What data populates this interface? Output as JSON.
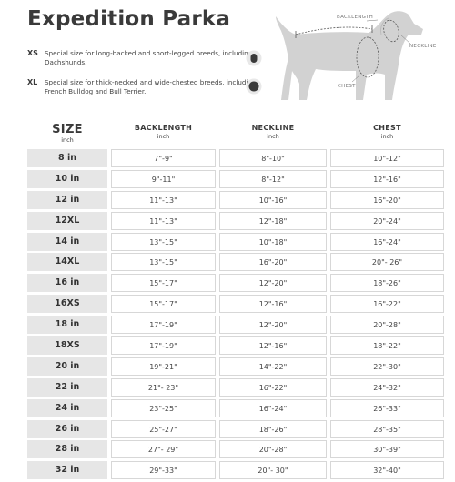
{
  "title": "Expedition Parka",
  "notes": [
    {
      "code": "XS",
      "text": "Special size for long-backed and short-legged breeds, including Dachshunds."
    },
    {
      "code": "XL",
      "text": "Special size for thick-necked and wide-chested breeds, including French Bulldog and Bull Terrier."
    }
  ],
  "diagram_labels": {
    "backlength": "BACKLENGTH",
    "neckline": "NECKLINE",
    "chest": "CHEST"
  },
  "columns": [
    {
      "title": "SIZE",
      "unit": "inch"
    },
    {
      "title": "BACKLENGTH",
      "unit": "inch"
    },
    {
      "title": "NECKLINE",
      "unit": "inch"
    },
    {
      "title": "CHEST",
      "unit": "inch"
    }
  ],
  "rows": [
    [
      "8 in",
      "7\"-9\"",
      "8\"-10\"",
      "10\"-12\""
    ],
    [
      "10 in",
      "9\"-11\"",
      "8\"-12\"",
      "12\"-16\""
    ],
    [
      "12 in",
      "11\"-13\"",
      "10\"-16\"",
      "16\"-20\""
    ],
    [
      "12XL",
      "11\"-13\"",
      "12\"-18\"",
      "20\"-24\""
    ],
    [
      "14 in",
      "13\"-15\"",
      "10\"-18\"",
      "16\"-24\""
    ],
    [
      "14XL",
      "13\"-15\"",
      "16\"-20\"",
      "20\"- 26\""
    ],
    [
      "16 in",
      "15\"-17\"",
      "12\"-20\"",
      "18\"-26\""
    ],
    [
      "16XS",
      "15\"-17\"",
      "12\"-16\"",
      "16\"-22\""
    ],
    [
      "18 in",
      "17\"-19\"",
      "12\"-20\"",
      "20\"-28\""
    ],
    [
      "18XS",
      "17\"-19\"",
      "12\"-16\"",
      "18\"-22\""
    ],
    [
      "20 in",
      "19\"-21\"",
      "14\"-22\"",
      "22\"-30\""
    ],
    [
      "22 in",
      "21\"- 23\"",
      "16\"-22\"",
      "24\"-32\""
    ],
    [
      "24 in",
      "23\"-25\"",
      "16\"-24\"",
      "26\"-33\""
    ],
    [
      "26 in",
      "25\"-27\"",
      "18\"-26\"",
      "28\"-35\""
    ],
    [
      "28 in",
      "27\"- 29\"",
      "20\"-28\"",
      "30\"-39\""
    ],
    [
      "32 in",
      "29\"-33\"",
      "20\"- 30\"",
      "32\"-40\""
    ]
  ]
}
